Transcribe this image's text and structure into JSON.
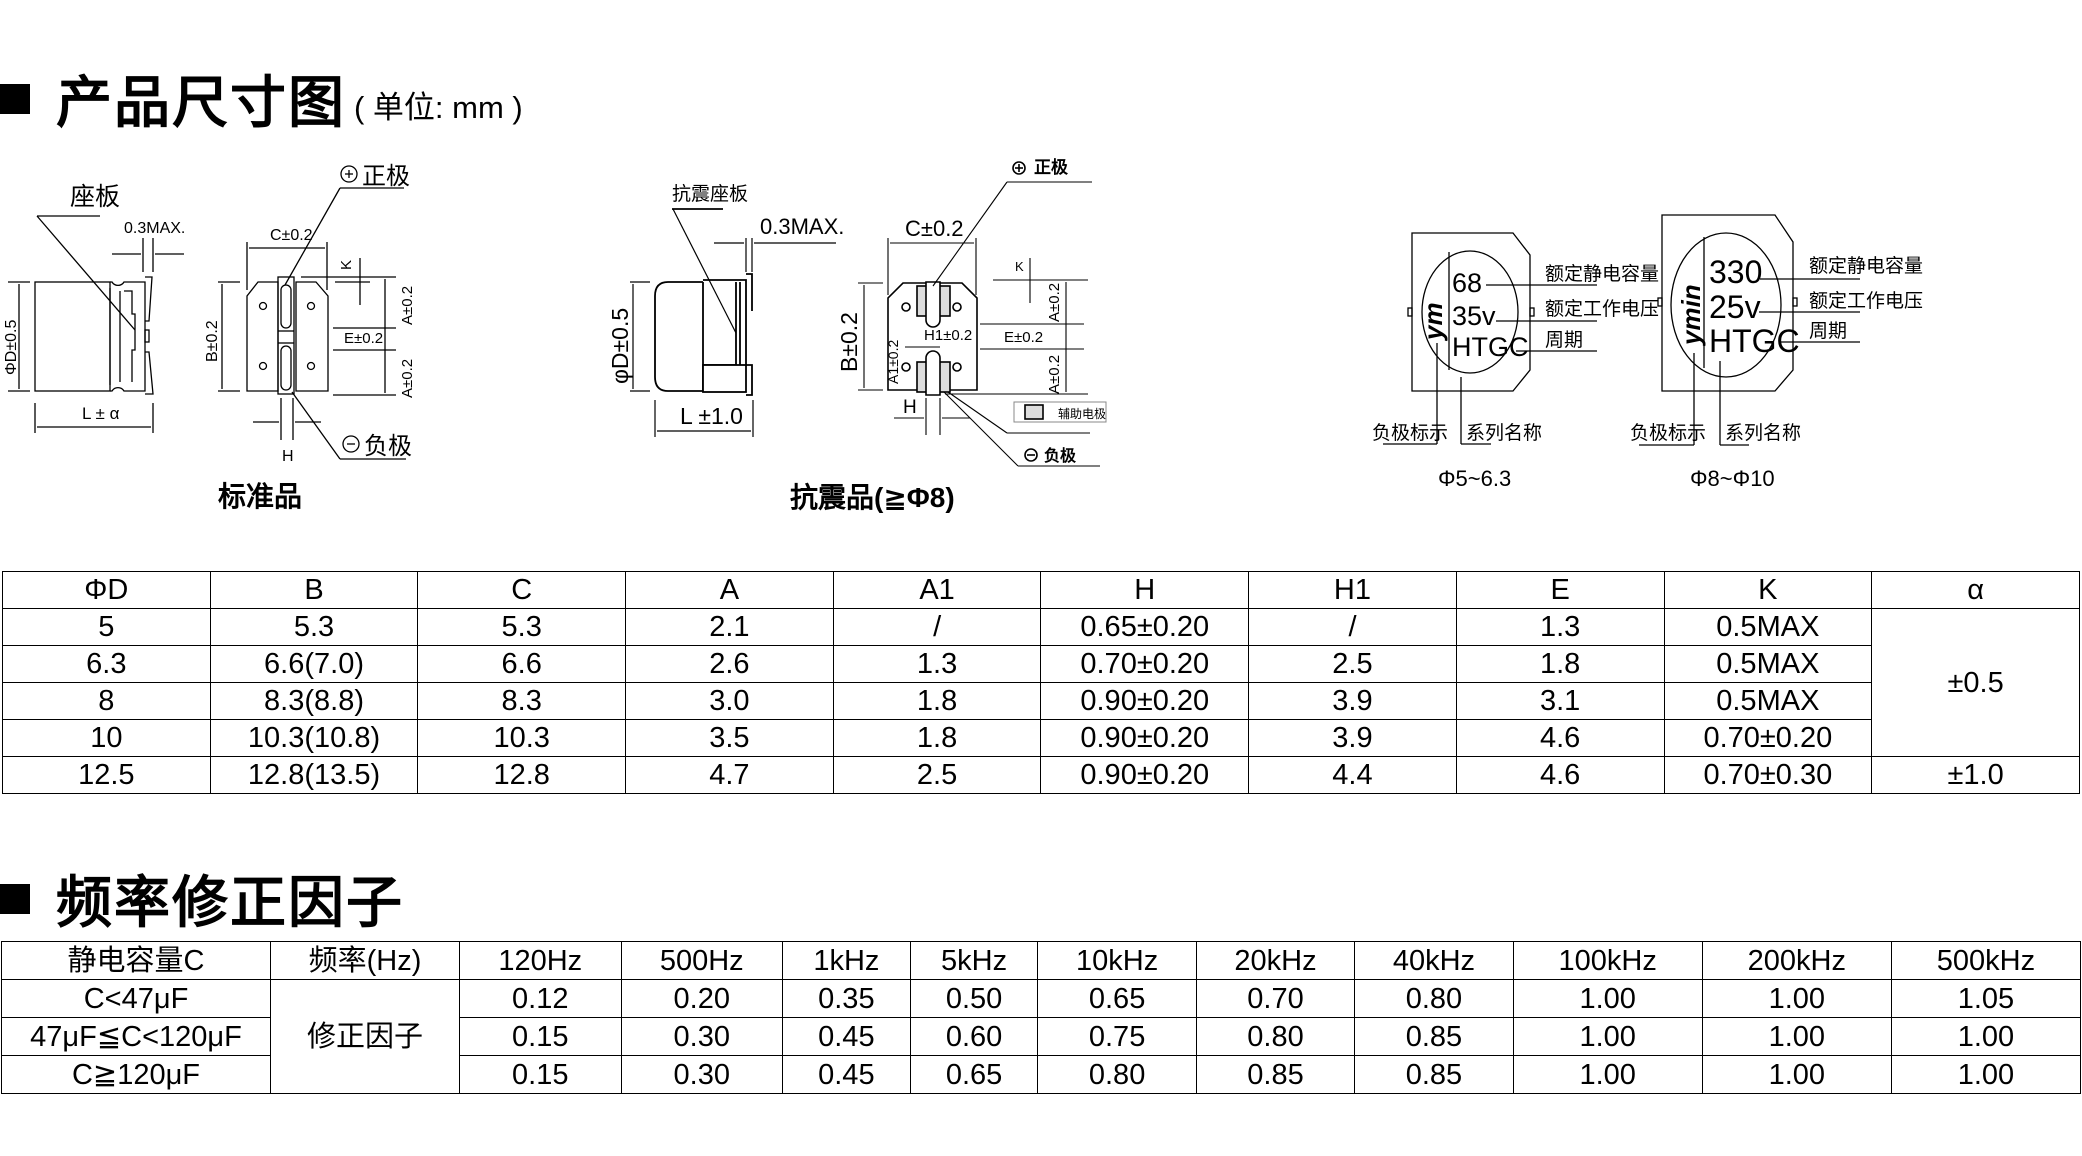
{
  "section1": {
    "title": "产品尺寸图",
    "unit": "( 单位: mm )"
  },
  "standard": {
    "seat_label": "座板",
    "max_label": "0.3MAX.",
    "phid_label": "ΦD±0.5",
    "l_label": "L ± α",
    "c_label": "C±0.2",
    "b_label": "B±0.2",
    "k_label": "K",
    "a_label": "A±0.2",
    "e_label": "E±0.2",
    "h_label": "H",
    "pos_label": "正极",
    "neg_label": "负极",
    "caption": "标准品"
  },
  "antivib": {
    "seat_label": "抗震座板",
    "max_label": "0.3MAX.",
    "phid_label": "φD±0.5",
    "l_label": "L ±1.0",
    "c_label": "C±0.2",
    "b_label": "B±0.2",
    "k_label": "K",
    "a_label": "A±0.2",
    "e_label": "E±0.2",
    "a1_label": "A1±0.2",
    "h1_label": "H1±0.2",
    "h_label": "H",
    "aux_label": "辅助电极",
    "pos_label": "正极",
    "neg_label": "负极",
    "caption": "抗震品(≧Φ8)"
  },
  "marking_small": {
    "cap": "68",
    "volt": "35v",
    "series": "HTGC",
    "logo": "ym",
    "cap_label": "额定静电容量",
    "volt_label": "额定工作电压",
    "period_label": "周期",
    "neg_label": "负极标示",
    "series_label": "系列名称",
    "caption": "Φ5~6.3"
  },
  "marking_large": {
    "cap": "330",
    "volt": "25v",
    "series": "HTGC",
    "logo": "ymin",
    "cap_label": "额定静电容量",
    "volt_label": "额定工作电压",
    "period_label": "周期",
    "neg_label": "负极标示",
    "series_label": "系列名称",
    "caption": "Φ8~Φ10"
  },
  "dim_table": {
    "headers": [
      "ΦD",
      "B",
      "C",
      "A",
      "A1",
      "H",
      "H1",
      "E",
      "K",
      "α"
    ],
    "rows": [
      [
        "5",
        "5.3",
        "5.3",
        "2.1",
        "/",
        "0.65±0.20",
        "/",
        "1.3",
        "0.5MAX"
      ],
      [
        "6.3",
        "6.6(7.0)",
        "6.6",
        "2.6",
        "1.3",
        "0.70±0.20",
        "2.5",
        "1.8",
        "0.5MAX"
      ],
      [
        "8",
        "8.3(8.8)",
        "8.3",
        "3.0",
        "1.8",
        "0.90±0.20",
        "3.9",
        "3.1",
        "0.5MAX"
      ],
      [
        "10",
        "10.3(10.8)",
        "10.3",
        "3.5",
        "1.8",
        "0.90±0.20",
        "3.9",
        "4.6",
        "0.70±0.20"
      ],
      [
        "12.5",
        "12.8(13.5)",
        "12.8",
        "4.7",
        "2.5",
        "0.90±0.20",
        "4.4",
        "4.6",
        "0.70±0.30"
      ]
    ],
    "alpha_values": [
      "±0.5",
      "±1.0"
    ]
  },
  "section2": {
    "title": "频率修正因子"
  },
  "freq_table": {
    "header_cap": "静电容量C",
    "header_freq": "频率(Hz)",
    "freqs": [
      "120Hz",
      "500Hz",
      "1kHz",
      "5kHz",
      "10kHz",
      "20kHz",
      "40kHz",
      "100kHz",
      "200kHz",
      "500kHz"
    ],
    "factor_label": "修正因子",
    "rows": [
      {
        "cap": "C<47μF",
        "values": [
          "0.12",
          "0.20",
          "0.35",
          "0.50",
          "0.65",
          "0.70",
          "0.80",
          "1.00",
          "1.00",
          "1.05"
        ]
      },
      {
        "cap": "47μF≦C<120μF",
        "values": [
          "0.15",
          "0.30",
          "0.45",
          "0.60",
          "0.75",
          "0.80",
          "0.85",
          "1.00",
          "1.00",
          "1.00"
        ]
      },
      {
        "cap": "C≧120μF",
        "values": [
          "0.15",
          "0.30",
          "0.45",
          "0.65",
          "0.80",
          "0.85",
          "0.85",
          "1.00",
          "1.00",
          "1.00"
        ]
      }
    ]
  }
}
